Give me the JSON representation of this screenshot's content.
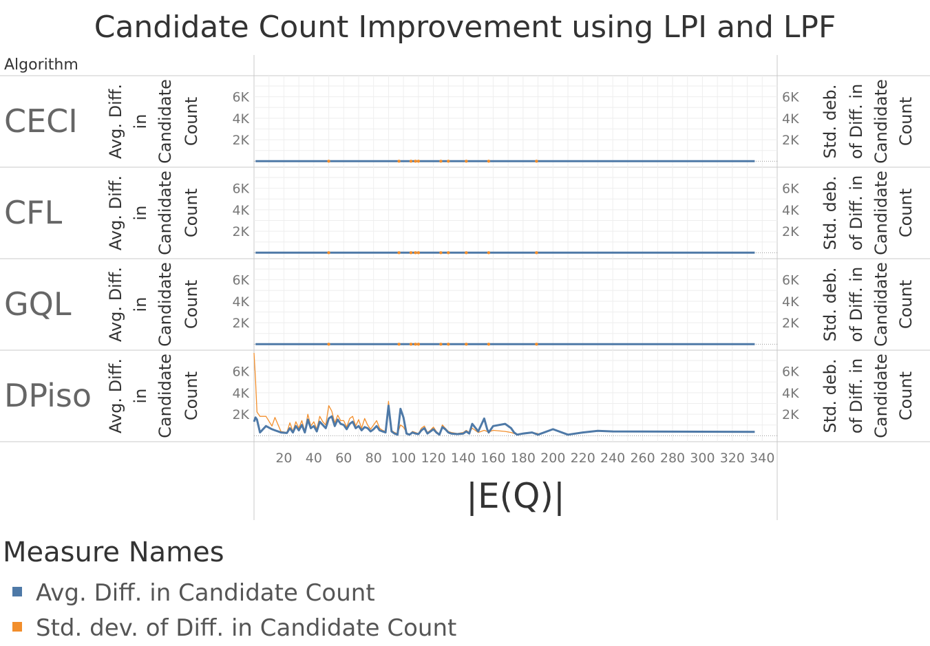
{
  "title": "Candidate Count Improvement using LPI and LPF",
  "header": {
    "row_dim_label": "Algorithm"
  },
  "colors": {
    "avg": "#4e79a7",
    "std": "#f28e2b"
  },
  "legend": {
    "title": "Measure Names",
    "items": [
      {
        "label": "Avg. Diff. in Candidate Count",
        "color": "#4e79a7"
      },
      {
        "label": "Std. dev. of Diff. in Candidate Count",
        "color": "#f28e2b"
      }
    ]
  },
  "chart_data": {
    "type": "line",
    "title": "Candidate Count Improvement using LPI and LPF",
    "xlabel": "|E(Q)|",
    "left_axis_label": "Avg. Diff. in Candidate Count",
    "right_axis_label": "Std. deb. of Diff. in Candidate Count",
    "x_ticks": [
      20,
      40,
      60,
      80,
      100,
      120,
      140,
      160,
      180,
      200,
      220,
      240,
      260,
      280,
      300,
      320,
      340
    ],
    "xlim": [
      0,
      350
    ],
    "y_ticks": [
      2000,
      4000,
      6000
    ],
    "y_tick_labels": [
      "2K",
      "4K",
      "6K"
    ],
    "ylim": [
      -300,
      7700
    ],
    "grid": true,
    "legend_position": "bottom-left",
    "panels": [
      {
        "algorithm": "CECI",
        "series": [
          {
            "name": "Avg. Diff. in Candidate Count",
            "x": [
              1,
              97,
              98,
              105,
              108,
              110,
              125,
              130,
              136,
              142,
              157,
              189,
              200,
              230,
              280,
              335
            ],
            "y": [
              0,
              0,
              0,
              0,
              0,
              0,
              0,
              0,
              0,
              0,
              0,
              0,
              0,
              0,
              0,
              0
            ]
          },
          {
            "name": "Std. dev. of Diff. in Candidate Count",
            "x": [
              1,
              50,
              97,
              105,
              108,
              110,
              125,
              130,
              142,
              157,
              189
            ],
            "y": [
              0,
              0,
              0,
              0,
              0,
              0,
              0,
              0,
              0,
              0,
              0
            ]
          }
        ]
      },
      {
        "algorithm": "CFL",
        "series": [
          {
            "name": "Avg. Diff. in Candidate Count",
            "x": [
              1,
              97,
              98,
              105,
              108,
              110,
              125,
              130,
              136,
              142,
              157,
              189,
              200,
              230,
              280,
              335
            ],
            "y": [
              0,
              0,
              0,
              0,
              0,
              0,
              0,
              0,
              0,
              0,
              0,
              0,
              0,
              0,
              0,
              0
            ]
          },
          {
            "name": "Std. dev. of Diff. in Candidate Count",
            "x": [
              1,
              50,
              97,
              105,
              108,
              110,
              125,
              130,
              142,
              157,
              189
            ],
            "y": [
              0,
              0,
              0,
              0,
              0,
              0,
              0,
              0,
              0,
              0,
              0
            ]
          }
        ]
      },
      {
        "algorithm": "GQL",
        "series": [
          {
            "name": "Avg. Diff. in Candidate Count",
            "x": [
              1,
              97,
              98,
              105,
              108,
              110,
              125,
              130,
              136,
              142,
              157,
              189,
              200,
              230,
              280,
              335
            ],
            "y": [
              0,
              0,
              0,
              0,
              0,
              0,
              0,
              0,
              0,
              0,
              0,
              0,
              0,
              0,
              0,
              0
            ]
          },
          {
            "name": "Std. dev. of Diff. in Candidate Count",
            "x": [
              1,
              50,
              97,
              105,
              108,
              110,
              125,
              130,
              142,
              157,
              189
            ],
            "y": [
              0,
              0,
              0,
              0,
              0,
              0,
              0,
              0,
              0,
              0,
              0
            ]
          }
        ]
      },
      {
        "algorithm": "DPiso",
        "series": [
          {
            "name": "Avg. Diff. in Candidate Count",
            "x": [
              0,
              1,
              2,
              4,
              8,
              12,
              14,
              18,
              22,
              24,
              26,
              28,
              30,
              32,
              34,
              36,
              38,
              40,
              42,
              44,
              46,
              48,
              50,
              52,
              54,
              56,
              58,
              60,
              62,
              64,
              66,
              68,
              70,
              72,
              74,
              76,
              78,
              80,
              82,
              84,
              86,
              88,
              90,
              92,
              94,
              96,
              98,
              100,
              102,
              104,
              106,
              108,
              110,
              112,
              114,
              116,
              118,
              120,
              122,
              124,
              126,
              128,
              130,
              132,
              136,
              140,
              142,
              144,
              146,
              150,
              154,
              156,
              157,
              158,
              160,
              168,
              172,
              174,
              176,
              180,
              186,
              190,
              200,
              210,
              220,
              230,
              240,
              280,
              335
            ],
            "y": [
              1300,
              1700,
              1500,
              300,
              900,
              600,
              500,
              300,
              250,
              700,
              300,
              900,
              500,
              1000,
              300,
              1500,
              700,
              900,
              400,
              1300,
              1000,
              700,
              1600,
              1800,
              900,
              1500,
              1100,
              1000,
              600,
              1100,
              1300,
              700,
              900,
              500,
              800,
              700,
              400,
              600,
              900,
              500,
              400,
              300,
              2800,
              400,
              200,
              100,
              2500,
              1700,
              200,
              100,
              300,
              200,
              150,
              500,
              700,
              200,
              400,
              600,
              300,
              100,
              800,
              600,
              300,
              200,
              150,
              200,
              400,
              200,
              1100,
              400,
              1600,
              600,
              300,
              500,
              900,
              1100,
              700,
              300,
              100,
              200,
              300,
              100,
              600,
              100,
              300,
              450,
              400,
              380,
              350
            ]
          },
          {
            "name": "Std. dev. of Diff. in Candidate Count",
            "x": [
              0,
              1,
              2,
              4,
              8,
              12,
              14,
              18,
              22,
              24,
              26,
              28,
              30,
              32,
              34,
              36,
              38,
              40,
              42,
              44,
              46,
              48,
              50,
              52,
              54,
              56,
              58,
              60,
              62,
              64,
              66,
              68,
              70,
              72,
              74,
              76,
              78,
              80,
              82,
              84,
              86,
              88,
              90,
              92,
              94,
              96,
              98,
              100,
              102,
              104,
              106,
              108,
              110,
              112,
              114,
              116,
              118,
              120,
              122,
              124,
              126,
              128,
              130,
              132,
              136,
              140,
              142,
              144,
              146,
              150,
              154,
              156,
              157,
              158,
              160,
              168,
              172,
              174,
              176,
              180,
              186,
              190
            ],
            "y": [
              7700,
              5200,
              2200,
              1800,
              1800,
              900,
              1700,
              400,
              300,
              1200,
              400,
              1300,
              700,
              1400,
              400,
              2000,
              900,
              1300,
              600,
              1800,
              1300,
              1000,
              2800,
              2300,
              1200,
              1900,
              1400,
              1400,
              800,
              1600,
              1800,
              900,
              1500,
              700,
              1600,
              1000,
              600,
              1000,
              1400,
              700,
              500,
              400,
              3200,
              500,
              300,
              200,
              1000,
              800,
              300,
              100,
              400,
              300,
              200,
              700,
              900,
              300,
              500,
              800,
              400,
              150,
              1000,
              700,
              400,
              300,
              200,
              300,
              500,
              300,
              700,
              300,
              500,
              400,
              300,
              400,
              500,
              400,
              300,
              200,
              100,
              200,
              300,
              200
            ]
          }
        ]
      }
    ]
  }
}
